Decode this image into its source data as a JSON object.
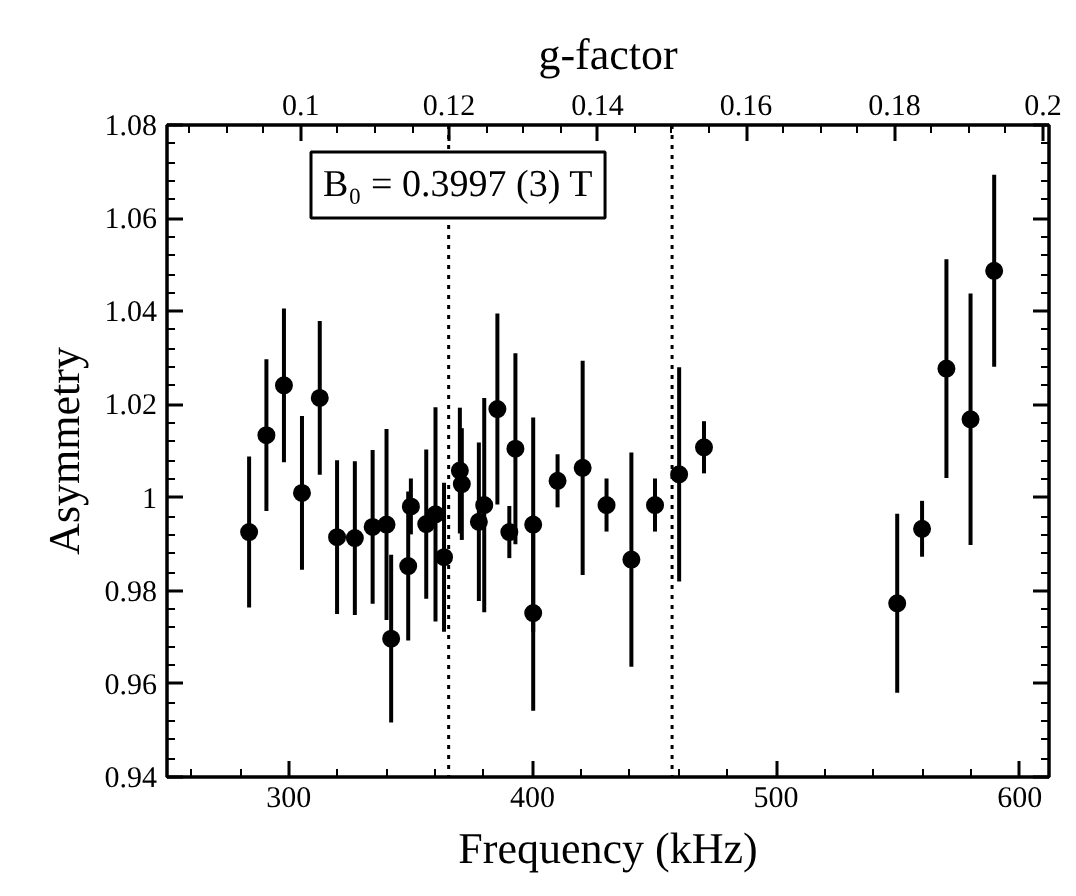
{
  "chart_data": {
    "type": "scatter",
    "xlabel": "Frequency (kHz)",
    "ylabel": "Asymmetry",
    "x2label": "g-factor",
    "marker": "circle",
    "x": [
      283.7,
      290.8,
      298,
      305.4,
      312.7,
      319.8,
      327.1,
      334.4,
      340.1,
      342,
      349,
      350.1,
      356.4,
      360.2,
      363.7,
      370.2,
      371,
      378,
      380.2,
      385.6,
      390.5,
      393,
      400.3,
      400.3,
      410.3,
      420.6,
      430.4,
      440.6,
      450.3,
      460.2,
      470.4,
      549.7,
      559.9,
      569.9,
      579.8,
      589.5
    ],
    "series": [
      {
        "color": "#000000",
        "values": [
          0.9926,
          1.0134,
          1.0241,
          1.001,
          1.0214,
          0.9915,
          0.9913,
          0.9937,
          0.9942,
          0.9697,
          0.9853,
          0.9981,
          0.9943,
          0.9964,
          0.9872,
          1.0058,
          1.0029,
          0.9948,
          0.9984,
          1.019,
          0.9926,
          1.0105,
          0.9942,
          0.9752,
          1.0036,
          1.0064,
          0.9984,
          0.9867,
          0.9984,
          1.005,
          1.0108,
          0.9773,
          0.9933,
          1.0277,
          1.0168,
          1.0487
        ],
        "errors": [
          0.0162,
          0.0163,
          0.0165,
          0.0165,
          0.0165,
          0.0165,
          0.0165,
          0.0165,
          0.0205,
          0.018,
          0.016,
          0.006,
          0.016,
          0.023,
          0.016,
          0.0135,
          0.012,
          0.017,
          0.023,
          0.0205,
          0.0056,
          0.0205,
          0.023,
          0.021,
          0.0057,
          0.023,
          0.0057,
          0.023,
          0.0057,
          0.023,
          0.0056,
          0.0192,
          0.006,
          0.0235,
          0.027,
          0.0206
        ]
      }
    ],
    "xlim": [
      250,
      612
    ],
    "xticks": [
      300,
      400,
      500,
      600
    ],
    "ylim": [
      0.94,
      1.08
    ],
    "yticks": [
      0.94,
      0.96,
      0.98,
      1,
      1.02,
      1.04,
      1.06,
      1.08
    ],
    "x2lim": [
      0.082,
      0.2008
    ],
    "x2ticks": [
      0.1,
      0.12,
      0.14,
      0.16,
      0.18,
      0.2
    ],
    "ref_lines": [
      {
        "axis": "x",
        "value": 365.6,
        "line_style": "dotted"
      },
      {
        "axis": "x",
        "value": 457.3,
        "line_style": "dotted"
      }
    ],
    "annotations": [
      "B₀ = 0.3997 (3) T"
    ]
  }
}
